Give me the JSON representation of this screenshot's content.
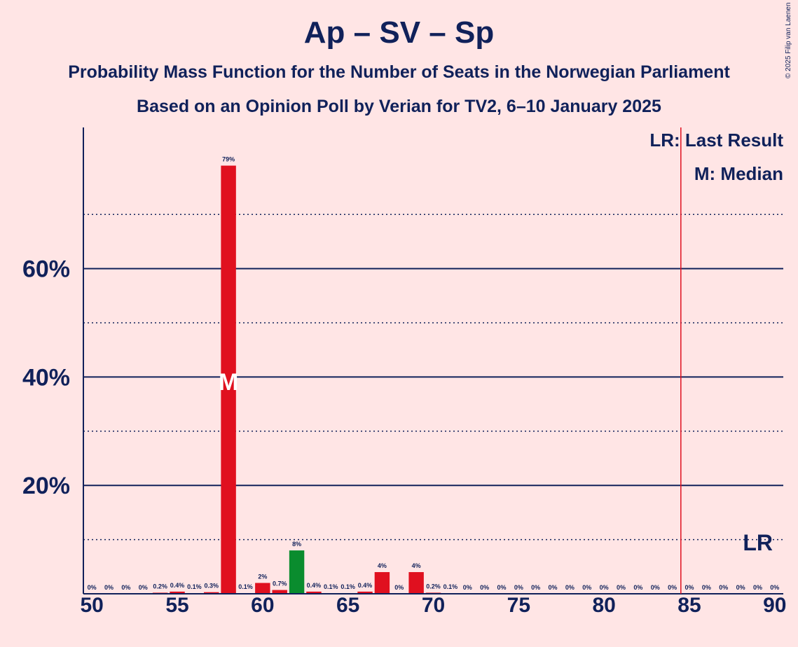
{
  "title": "Ap – SV – Sp",
  "subtitle": "Probability Mass Function for the Number of Seats in the Norwegian Parliament",
  "subtitle2": "Based on an Opinion Poll by Verian for TV2, 6–10 January 2025",
  "copyright": "© 2025 Filip van Laenen",
  "legend": {
    "last_result": "LR: Last Result",
    "median": "M: Median"
  },
  "markers": {
    "median_label": "M",
    "last_result_label": "LR"
  },
  "colors": {
    "red": "#e0101f",
    "green": "#0a8c2e",
    "axis": "#10215a",
    "lr_line": "#e0101f",
    "background": "#ffe5e5"
  },
  "chart_data": {
    "type": "bar",
    "x": [
      50,
      51,
      52,
      53,
      54,
      55,
      56,
      57,
      58,
      59,
      60,
      61,
      62,
      63,
      64,
      65,
      66,
      67,
      68,
      69,
      70,
      71,
      72,
      73,
      74,
      75,
      76,
      77,
      78,
      79,
      80,
      81,
      82,
      83,
      84,
      85,
      86,
      87,
      88,
      89,
      90
    ],
    "values": [
      0,
      0,
      0,
      0,
      0.2,
      0.4,
      0.1,
      0.3,
      79,
      0.1,
      2,
      0.7,
      8,
      0.4,
      0.1,
      0.1,
      0.4,
      4,
      0,
      4,
      0.2,
      0.1,
      0,
      0,
      0,
      0,
      0,
      0,
      0,
      0,
      0,
      0,
      0,
      0,
      0,
      0,
      0,
      0,
      0,
      0,
      0
    ],
    "labels": [
      "0%",
      "0%",
      "0%",
      "0%",
      "0.2%",
      "0.4%",
      "0.1%",
      "0.3%",
      "79%",
      "0.1%",
      "2%",
      "0.7%",
      "8%",
      "0.4%",
      "0.1%",
      "0.1%",
      "0.4%",
      "4%",
      "0%",
      "4%",
      "0.2%",
      "0.1%",
      "0%",
      "0%",
      "0%",
      "0%",
      "0%",
      "0%",
      "0%",
      "0%",
      "0%",
      "0%",
      "0%",
      "0%",
      "0%",
      "0%",
      "0%",
      "0%",
      "0%",
      "0%",
      "0%"
    ],
    "bar_colors": [
      "red",
      "red",
      "red",
      "red",
      "red",
      "red",
      "red",
      "red",
      "red",
      "red",
      "red",
      "red",
      "green",
      "red",
      "red",
      "red",
      "red",
      "red",
      "red",
      "red",
      "red",
      "red",
      "red",
      "red",
      "red",
      "red",
      "red",
      "red",
      "red",
      "red",
      "red",
      "red",
      "red",
      "red",
      "red",
      "red",
      "red",
      "red",
      "red",
      "red",
      "red"
    ],
    "x_ticks": [
      "50",
      "55",
      "60",
      "65",
      "70",
      "75",
      "80",
      "85",
      "90"
    ],
    "y_ticks": [
      "20%",
      "40%",
      "60%"
    ],
    "xlim": [
      50,
      90
    ],
    "ylim": [
      0,
      86
    ],
    "median": 58,
    "last_result": 84.5,
    "grid": true
  }
}
